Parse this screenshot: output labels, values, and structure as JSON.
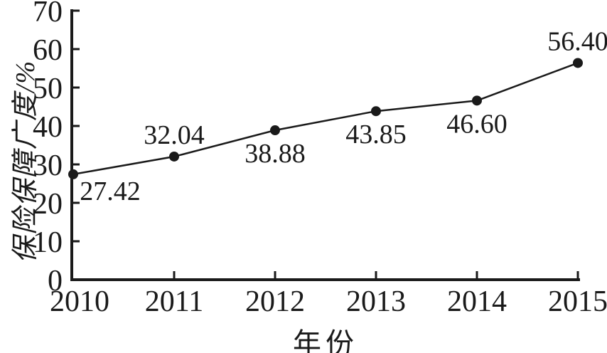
{
  "chart_data": {
    "type": "line",
    "title": "",
    "categories": [
      "2010",
      "2011",
      "2012",
      "2013",
      "2014",
      "2015"
    ],
    "series": [
      {
        "name": "保险保障广度",
        "values": [
          27.42,
          32.04,
          38.88,
          43.85,
          46.6,
          56.4
        ]
      }
    ],
    "value_labels": [
      "27.42",
      "32.04",
      "38.88",
      "43.85",
      "46.60",
      "56.40"
    ],
    "label_placement": [
      "below-right",
      "above",
      "below",
      "below",
      "below",
      "above"
    ],
    "xlabel": "年份",
    "ylabel": "保险保障广度/%",
    "ylim": [
      0,
      70
    ],
    "yticks": [
      0,
      10,
      20,
      30,
      40,
      50,
      60,
      70
    ],
    "grid": false,
    "legend_position": "none",
    "marker": "filled-circle",
    "ink_color": "#1a1a1a",
    "background_color": "#ffffff"
  }
}
